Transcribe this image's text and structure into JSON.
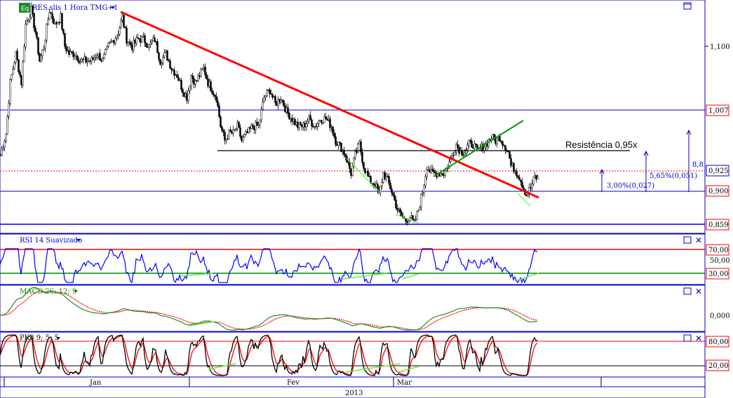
{
  "app": {
    "badge": "Eq",
    "main_title": "RES.slis 1 Hora TMG+1"
  },
  "colors": {
    "price_frame": "#0000cc",
    "trendline_red": "#ff0000",
    "trendline_green": "#00aa00",
    "divergence_green": "#66ee44",
    "rsi_line": "#0000ff",
    "macd_signal": "#ff0000",
    "macd_line": "#228b22",
    "stoch_k": "#000000",
    "stoch_d": "#ff0000",
    "price_label_border": "#ff0000"
  },
  "chart_data": [
    {
      "type": "candlestick",
      "title": "RES.slis 1 Hora TMG+1",
      "x_tick_labels": [
        "Jan",
        "Fev",
        "Mar"
      ],
      "year_label": "2013",
      "y_tick_labels": [
        "1,100"
      ],
      "price_levels": [
        {
          "label": "1,007",
          "value": 1.007
        },
        {
          "label": "0,925",
          "value": 0.925
        },
        {
          "label": "0,900",
          "value": 0.9
        },
        {
          "label": "0,859",
          "value": 0.859
        }
      ],
      "ylim": [
        0.855,
        1.17
      ],
      "close_path": [
        [
          0,
          0.96
        ],
        [
          8,
          0.99
        ],
        [
          14,
          1.06
        ],
        [
          22,
          1.1
        ],
        [
          30,
          1.06
        ],
        [
          36,
          1.14
        ],
        [
          44,
          1.16
        ],
        [
          50,
          1.13
        ],
        [
          56,
          1.09
        ],
        [
          62,
          1.11
        ],
        [
          70,
          1.16
        ],
        [
          78,
          1.14
        ],
        [
          86,
          1.15
        ],
        [
          92,
          1.11
        ],
        [
          98,
          1.1
        ],
        [
          106,
          1.1
        ],
        [
          114,
          1.09
        ],
        [
          122,
          1.09
        ],
        [
          130,
          1.09
        ],
        [
          138,
          1.1
        ],
        [
          146,
          1.09
        ],
        [
          154,
          1.11
        ],
        [
          162,
          1.12
        ],
        [
          168,
          1.13
        ],
        [
          174,
          1.15
        ],
        [
          180,
          1.12
        ],
        [
          188,
          1.11
        ],
        [
          196,
          1.12
        ],
        [
          204,
          1.12
        ],
        [
          212,
          1.11
        ],
        [
          220,
          1.12
        ],
        [
          228,
          1.09
        ],
        [
          236,
          1.1
        ],
        [
          244,
          1.08
        ],
        [
          252,
          1.07
        ],
        [
          260,
          1.05
        ],
        [
          266,
          1.04
        ],
        [
          272,
          1.07
        ],
        [
          278,
          1.06
        ],
        [
          284,
          1.07
        ],
        [
          290,
          1.08
        ],
        [
          296,
          1.06
        ],
        [
          302,
          1.05
        ],
        [
          308,
          1.04
        ],
        [
          314,
          1.0
        ],
        [
          320,
          0.98
        ],
        [
          326,
          0.99
        ],
        [
          332,
          0.99
        ],
        [
          338,
          1.0
        ],
        [
          344,
          0.98
        ],
        [
          352,
          0.99
        ],
        [
          360,
          1.0
        ],
        [
          368,
          1.0
        ],
        [
          376,
          1.04
        ],
        [
          384,
          1.05
        ],
        [
          392,
          1.03
        ],
        [
          400,
          1.04
        ],
        [
          408,
          1.02
        ],
        [
          416,
          1.01
        ],
        [
          424,
          1.0
        ],
        [
          432,
          1.0
        ],
        [
          440,
          1.01
        ],
        [
          448,
          1.0
        ],
        [
          456,
          1.01
        ],
        [
          464,
          1.01
        ],
        [
          472,
          1.0
        ],
        [
          478,
          0.98
        ],
        [
          486,
          0.97
        ],
        [
          492,
          0.96
        ],
        [
          500,
          0.935
        ],
        [
          506,
          0.96
        ],
        [
          512,
          0.975
        ],
        [
          518,
          0.945
        ],
        [
          526,
          0.925
        ],
        [
          534,
          0.92
        ],
        [
          540,
          0.905
        ],
        [
          546,
          0.935
        ],
        [
          552,
          0.925
        ],
        [
          558,
          0.91
        ],
        [
          566,
          0.885
        ],
        [
          572,
          0.875
        ],
        [
          578,
          0.87
        ],
        [
          584,
          0.875
        ],
        [
          590,
          0.865
        ],
        [
          596,
          0.885
        ],
        [
          602,
          0.91
        ],
        [
          608,
          0.945
        ],
        [
          614,
          0.935
        ],
        [
          620,
          0.935
        ],
        [
          626,
          0.935
        ],
        [
          632,
          0.935
        ],
        [
          638,
          0.945
        ],
        [
          644,
          0.96
        ],
        [
          650,
          0.975
        ],
        [
          656,
          0.965
        ],
        [
          662,
          0.965
        ],
        [
          668,
          0.975
        ],
        [
          674,
          0.975
        ],
        [
          680,
          0.965
        ],
        [
          686,
          0.97
        ],
        [
          692,
          0.975
        ],
        [
          700,
          0.985
        ],
        [
          706,
          0.98
        ],
        [
          712,
          0.985
        ],
        [
          718,
          0.975
        ],
        [
          724,
          0.965
        ],
        [
          728,
          0.945
        ],
        [
          734,
          0.94
        ],
        [
          740,
          0.93
        ],
        [
          746,
          0.915
        ],
        [
          750,
          0.905
        ],
        [
          756,
          0.915
        ],
        [
          762,
          0.93
        ],
        [
          768,
          0.925
        ]
      ],
      "trendlines": [
        {
          "color": "red",
          "from": [
            172,
            1.15
          ],
          "to": [
            768,
            0.885
          ]
        },
        {
          "color": "green",
          "from": [
            618,
            0.923
          ],
          "to": [
            746,
            0.99
          ]
        },
        {
          "color": "black",
          "from": [
            310,
            0.945
          ],
          "to": [
            898,
            0.945
          ]
        }
      ],
      "annotations": [
        {
          "text": "Resistência 0,95x"
        },
        {
          "text": "3,00%(0,027)"
        },
        {
          "text": "5,65%(0,051)"
        },
        {
          "text": "8,8"
        }
      ]
    },
    {
      "type": "line",
      "title": "RSI 14 Suavizado",
      "y_tick_labels": [
        "70,00",
        "50,00",
        "30,00"
      ],
      "ylim": [
        0,
        100
      ],
      "levels": [
        70,
        30
      ]
    },
    {
      "type": "line",
      "title": "MACD 26; 12; 9",
      "y_tick_labels": [
        "0,000"
      ]
    },
    {
      "type": "line",
      "title": "PK8 9; 5; 5",
      "y_tick_labels": [
        "80,00",
        "20,00"
      ],
      "ylim": [
        0,
        100
      ],
      "levels": [
        80,
        20
      ]
    }
  ],
  "panes": {
    "rsi_title": "RSI 14 Suavizado",
    "macd_title": "MACD 26; 12; 9",
    "stoch_title": "PK8 9; 5; 5",
    "rsi_labels": {
      "hi": "70,00",
      "mid": "50,00",
      "lo": "30,00"
    },
    "macd_labels": {
      "zero": "0,000"
    },
    "stoch_labels": {
      "hi": "80,00",
      "lo": "20,00"
    }
  },
  "main_labels": {
    "tick_1100": "1,100",
    "lvl_1007": "1,007",
    "lvl_0925": "0,925",
    "lvl_0900": "0,900",
    "lvl_0859": "0,859",
    "resist": "Resistência 0,95x",
    "pct3": "3,00%(0,027)",
    "pct565": "5,65%(0,051)",
    "pct88": "8,8"
  },
  "xaxis": {
    "jan": "Jan",
    "fev": "Fev",
    "mar": "Mar",
    "year": "2013"
  },
  "icons": {
    "maximize": "maximize-icon",
    "close": "close-icon",
    "menu": "dropdown-arrow-icon"
  }
}
